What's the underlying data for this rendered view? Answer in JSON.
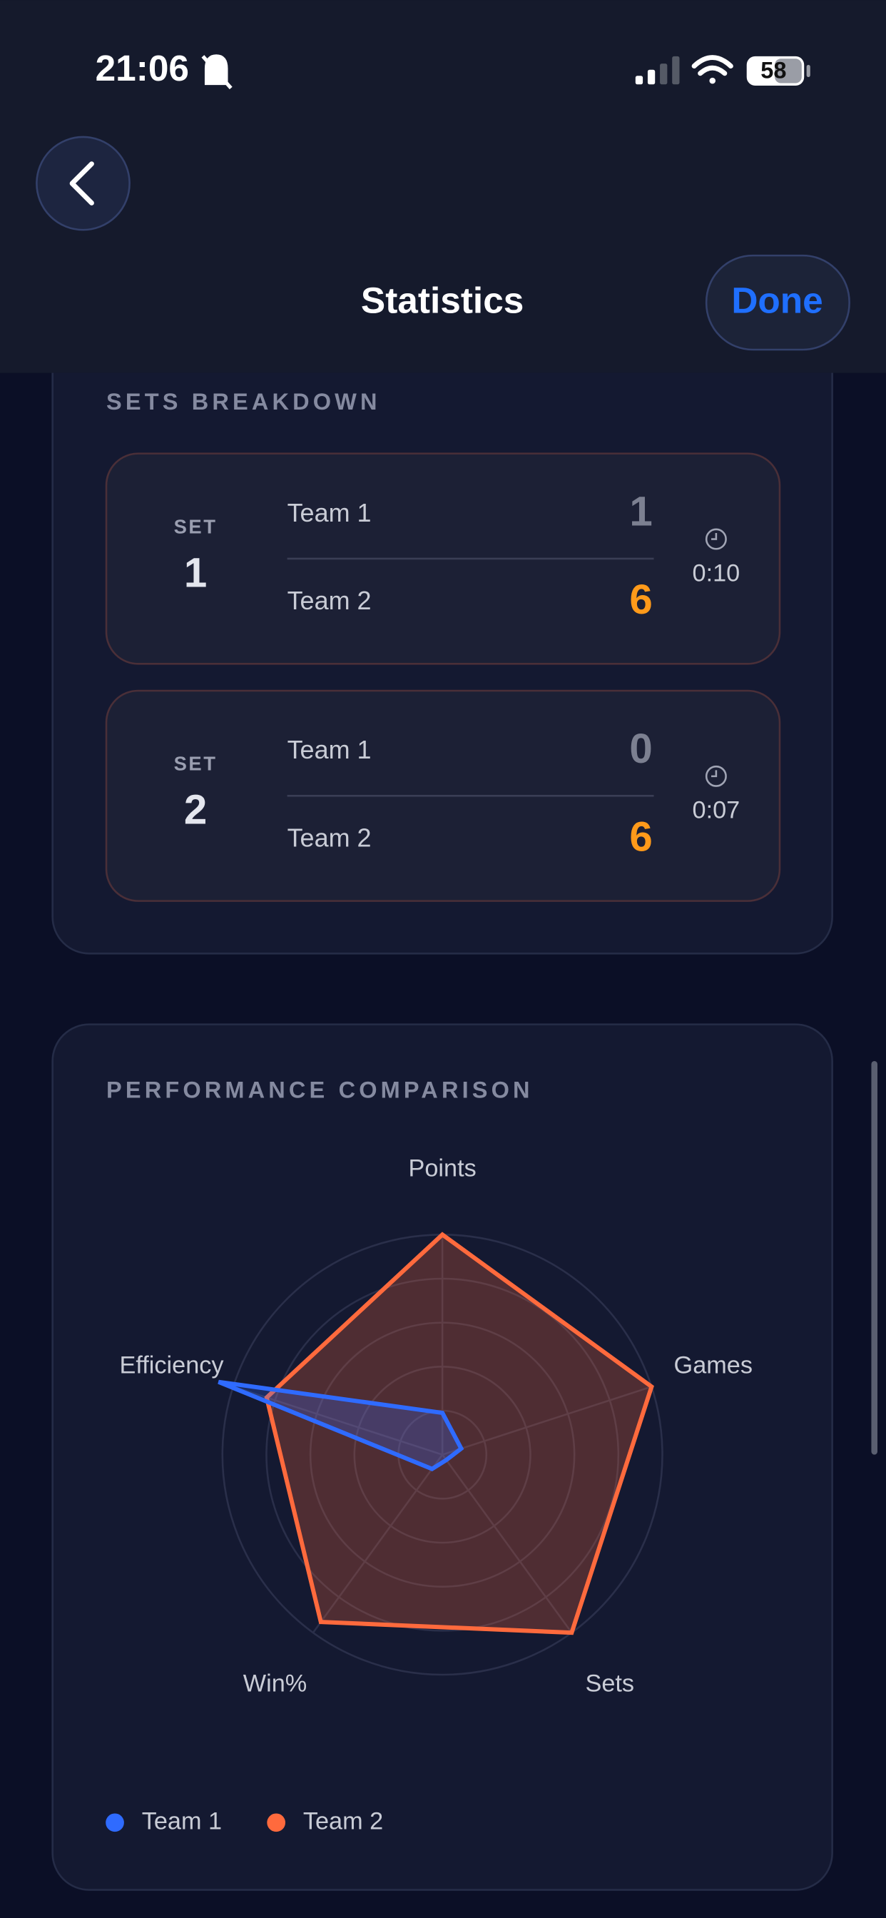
{
  "status_bar": {
    "time": "21:06",
    "battery": "58"
  },
  "header": {
    "title": "Statistics",
    "done": "Done"
  },
  "sets_breakdown": {
    "title": "SETS BREAKDOWN",
    "sets": [
      {
        "label": "SET",
        "number": 1,
        "teams": [
          {
            "name": "Team 1",
            "score": 1
          },
          {
            "name": "Team 2",
            "score": 6
          }
        ],
        "duration": "0:10"
      },
      {
        "label": "SET",
        "number": 2,
        "teams": [
          {
            "name": "Team 1",
            "score": 0
          },
          {
            "name": "Team 2",
            "score": 6
          }
        ],
        "duration": "0:07"
      }
    ]
  },
  "chart_data": {
    "type": "radar",
    "title": "PERFORMANCE COMPARISON",
    "categories": [
      "Points",
      "Games",
      "Sets",
      "Win%",
      "Efficiency"
    ],
    "series": [
      {
        "name": "Team 1",
        "color": "#2f6bff",
        "values": [
          19,
          9,
          3,
          8,
          107
        ]
      },
      {
        "name": "Team 2",
        "color": "#ff6a3d",
        "values": [
          100,
          100,
          100,
          94,
          84
        ]
      }
    ],
    "rlim": [
      0,
      100
    ],
    "rticks": [
      20,
      40,
      60,
      80,
      100
    ],
    "grid": true
  }
}
